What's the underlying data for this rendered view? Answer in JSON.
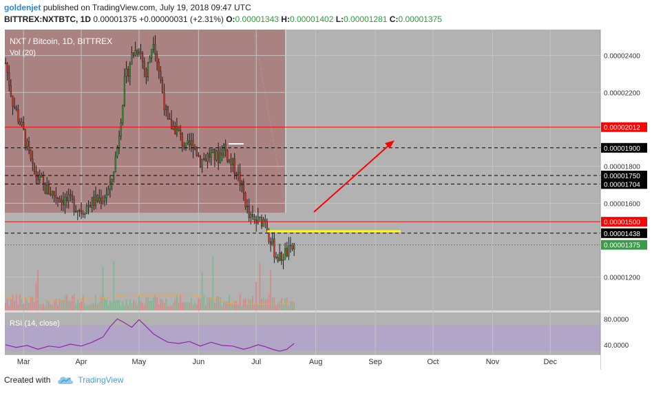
{
  "header": {
    "user": "goldenjet",
    "published": "published on TradingView.com, July 19, 2018 09:47 UTC",
    "symbol": "BITTREX:NXTBTC, 1D",
    "price": "0.00001375",
    "change": "+0.00000031 (+2.31%)",
    "o_label": "O:",
    "o": "0.00001343",
    "h_label": "H:",
    "h": "0.00001402",
    "l_label": "L:",
    "l": "0.00001281",
    "c_label": "C:",
    "c": "0.00001375"
  },
  "pane": {
    "title": "NXT / Bitcoin, 1D, BITTREX",
    "vol": "Vol (20)",
    "rsi": "RSI (14, close)"
  },
  "footer": {
    "created_with": "Created with",
    "brand": "TradingView"
  },
  "colors": {
    "up": "#2e9e3a",
    "down": "#c0392b",
    "red_line": "#ff0000",
    "support_yellow": "#ffff00",
    "rsi_line": "#8e24aa",
    "rsi_band": "#b39ddb",
    "bg_chart": "#b2b2b2",
    "overlay": "#a86f6f"
  },
  "chart_data": {
    "type": "candlestick",
    "x_ticks": [
      "Mar",
      "Apr",
      "May",
      "Jun",
      "Jul",
      "Aug",
      "Sep",
      "Oct",
      "Nov",
      "Dec"
    ],
    "y_ticks": [
      "0.00002400",
      "0.00002200",
      "0.00001800",
      "0.00001600",
      "0.00001200"
    ],
    "ylim": [
      1.02e-05,
      2.54e-05
    ],
    "levels": [
      {
        "value": "0.00002012",
        "style": "solid-red"
      },
      {
        "value": "0.00001900",
        "style": "dashed-black"
      },
      {
        "value": "0.00001750",
        "style": "dashed-black"
      },
      {
        "value": "0.00001704",
        "style": "dashed-black"
      },
      {
        "value": "0.00001500",
        "style": "solid-red"
      },
      {
        "value": "0.00001438",
        "style": "dashed-black"
      },
      {
        "value": "0.00001375",
        "style": "dotted-green"
      }
    ],
    "price_path": [
      [
        0,
        2.36e-05
      ],
      [
        4,
        2.15e-05
      ],
      [
        10,
        1.98e-05
      ],
      [
        15,
        1.78e-05
      ],
      [
        22,
        1.68e-05
      ],
      [
        30,
        1.63e-05
      ],
      [
        37,
        1.6e-05
      ],
      [
        42,
        1.56e-05
      ],
      [
        47,
        1.6e-05
      ],
      [
        54,
        1.63e-05
      ],
      [
        58,
        1.68e-05
      ],
      [
        62,
        1.9e-05
      ],
      [
        66,
        2.25e-05
      ],
      [
        70,
        2.4e-05
      ],
      [
        74,
        2.45e-05
      ],
      [
        78,
        2.29e-05
      ],
      [
        82,
        2.5e-05
      ],
      [
        86,
        2.26e-05
      ],
      [
        90,
        2.03e-05
      ],
      [
        95,
        2e-05
      ],
      [
        100,
        1.89e-05
      ],
      [
        104,
        1.93e-05
      ],
      [
        108,
        1.83e-05
      ],
      [
        113,
        1.86e-05
      ],
      [
        118,
        1.85e-05
      ],
      [
        121,
        1.91e-05
      ],
      [
        124,
        1.83e-05
      ],
      [
        128,
        1.78e-05
      ],
      [
        132,
        1.65e-05
      ],
      [
        135,
        1.52e-05
      ],
      [
        138,
        1.5e-05
      ],
      [
        141,
        1.5e-05
      ],
      [
        144,
        1.52e-05
      ],
      [
        146,
        1.43e-05
      ],
      [
        148,
        1.37e-05
      ],
      [
        150,
        1.32e-05
      ],
      [
        152,
        1.3e-05
      ],
      [
        155,
        1.33e-05
      ],
      [
        158,
        1.34e-05
      ],
      [
        160,
        1.37e-05
      ]
    ],
    "rsi": {
      "ylim": [
        25,
        90
      ],
      "y_ticks": [
        "80.0000",
        "40.0000"
      ],
      "band": [
        30,
        70
      ],
      "path": [
        [
          0,
          40
        ],
        [
          6,
          36
        ],
        [
          12,
          39
        ],
        [
          18,
          33
        ],
        [
          24,
          38
        ],
        [
          30,
          36
        ],
        [
          36,
          41
        ],
        [
          42,
          38
        ],
        [
          48,
          44
        ],
        [
          54,
          52
        ],
        [
          58,
          68
        ],
        [
          62,
          80
        ],
        [
          66,
          74
        ],
        [
          70,
          67
        ],
        [
          74,
          79
        ],
        [
          78,
          68
        ],
        [
          82,
          57
        ],
        [
          86,
          50
        ],
        [
          90,
          44
        ],
        [
          96,
          42
        ],
        [
          102,
          45
        ],
        [
          108,
          38
        ],
        [
          114,
          44
        ],
        [
          120,
          39
        ],
        [
          126,
          38
        ],
        [
          132,
          33
        ],
        [
          136,
          36
        ],
        [
          140,
          40
        ],
        [
          144,
          37
        ],
        [
          148,
          33
        ],
        [
          152,
          30
        ],
        [
          156,
          33
        ],
        [
          160,
          42
        ]
      ]
    }
  }
}
